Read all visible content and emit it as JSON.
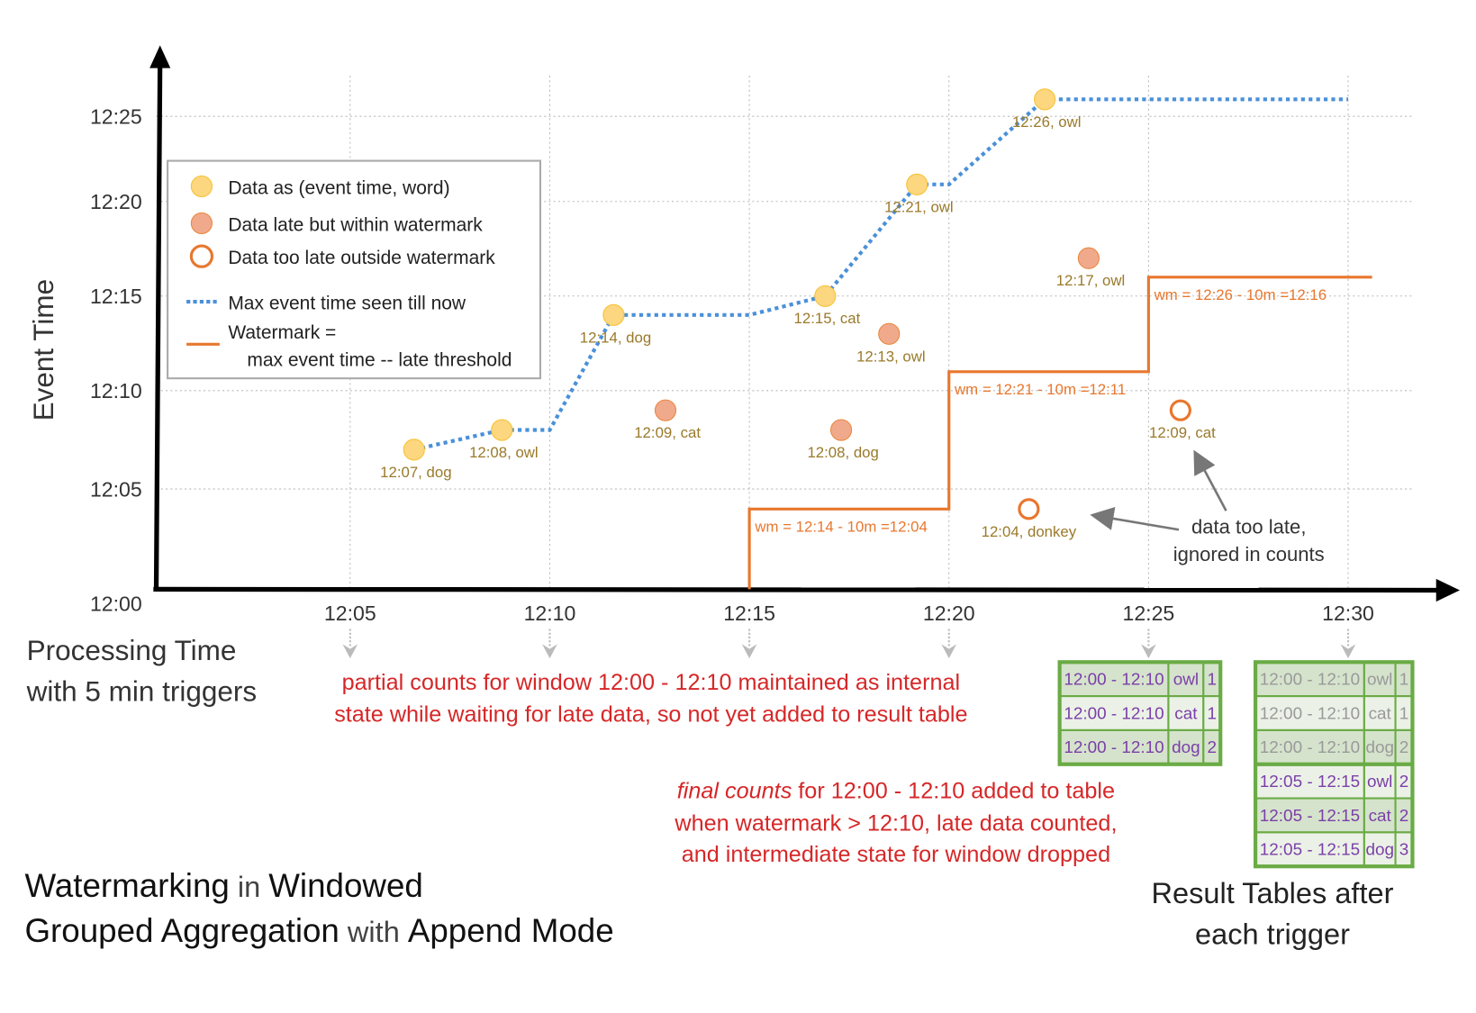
{
  "y_axis": {
    "label": "Event Time",
    "ticks": [
      "12:00",
      "12:05",
      "12:10",
      "12:15",
      "12:20",
      "12:25"
    ]
  },
  "x_axis": {
    "label_line1": "Processing Time",
    "label_line2": "with 5 min triggers",
    "ticks": [
      "12:05",
      "12:10",
      "12:15",
      "12:20",
      "12:25",
      "12:30"
    ]
  },
  "legend": {
    "on_time": "Data as (event time, word)",
    "late": "Data late but within watermark",
    "too_late": "Data too late outside watermark",
    "max_event": "Max event time seen till now",
    "watermark_line1": "Watermark =",
    "watermark_line2": "max event time -- late threshold"
  },
  "colors": {
    "on_time": "#fdd680",
    "late": "#f1a98c",
    "too_late": "#e8772e",
    "max_line": "#4a90d9",
    "watermark": "#e8772e",
    "table_border": "#6aab45",
    "table_text": "#7b3fa8",
    "red_text": "#d62728"
  },
  "points": [
    {
      "label": "12:07, dog",
      "event": 7,
      "proc": 6.6,
      "kind": "on_time"
    },
    {
      "label": "12:08, owl",
      "event": 8,
      "proc": 8.8,
      "kind": "on_time"
    },
    {
      "label": "12:14, dog",
      "event": 14,
      "proc": 11.6,
      "kind": "on_time"
    },
    {
      "label": "12:09, cat",
      "event": 9,
      "proc": 12.9,
      "kind": "late"
    },
    {
      "label": "12:15, cat",
      "event": 15,
      "proc": 16.9,
      "kind": "on_time"
    },
    {
      "label": "12:08, dog",
      "event": 8,
      "proc": 17.3,
      "kind": "late"
    },
    {
      "label": "12:13, owl",
      "event": 13,
      "proc": 18.5,
      "kind": "late"
    },
    {
      "label": "12:21, owl",
      "event": 21,
      "proc": 19.2,
      "kind": "on_time"
    },
    {
      "label": "12:04, donkey",
      "event": 4,
      "proc": 22.0,
      "kind": "too_late"
    },
    {
      "label": "12:26, owl",
      "event": 26,
      "proc": 22.4,
      "kind": "on_time"
    },
    {
      "label": "12:17, owl",
      "event": 17,
      "proc": 23.5,
      "kind": "late"
    },
    {
      "label": "12:09, cat",
      "event": 9,
      "proc": 25.8,
      "kind": "too_late"
    }
  ],
  "watermark_steps": [
    {
      "proc": 15,
      "wm": 4,
      "label": "wm = 12:14 - 10m =12:04"
    },
    {
      "proc": 20,
      "wm": 11,
      "label": "wm = 12:21 - 10m =12:11"
    },
    {
      "proc": 25,
      "wm": 16,
      "label": "wm = 12:26 - 10m =12:16"
    }
  ],
  "annotations": {
    "too_late_line1": "data too late,",
    "too_late_line2": "ignored in counts",
    "partial_line1": "partial counts for window 12:00 - 12:10 maintained as internal",
    "partial_line2": "state while waiting for late data, so not yet added  to result table",
    "final_em": "final counts",
    "final_line1_rest": " for 12:00 - 12:10 added to table",
    "final_line2": "when watermark > 12:10, late data counted,",
    "final_line3": "and intermediate state for window dropped"
  },
  "title": {
    "w1": "Watermarking",
    "w2": " in ",
    "w3": "Windowed",
    "w4": "Grouped Aggregation",
    "w5": " with ",
    "w6": "Append Mode"
  },
  "result_caption": {
    "line1": "Result Tables after",
    "line2": "each trigger"
  },
  "tables": [
    {
      "trigger": "12:25",
      "rows": [
        {
          "window": "12:00 - 12:10",
          "word": "owl",
          "count": "1",
          "stale": false
        },
        {
          "window": "12:00 - 12:10",
          "word": "cat",
          "count": "1",
          "stale": false
        },
        {
          "window": "12:00 - 12:10",
          "word": "dog",
          "count": "2",
          "stale": false
        }
      ]
    },
    {
      "trigger": "12:30",
      "rows": [
        {
          "window": "12:00 - 12:10",
          "word": "owl",
          "count": "1",
          "stale": true
        },
        {
          "window": "12:00 - 12:10",
          "word": "cat",
          "count": "1",
          "stale": true
        },
        {
          "window": "12:00 - 12:10",
          "word": "dog",
          "count": "2",
          "stale": true
        },
        {
          "window": "12:05 - 12:15",
          "word": "owl",
          "count": "2",
          "stale": false
        },
        {
          "window": "12:05 - 12:15",
          "word": "cat",
          "count": "2",
          "stale": false
        },
        {
          "window": "12:05 - 12:15",
          "word": "dog",
          "count": "3",
          "stale": false
        }
      ]
    }
  ]
}
